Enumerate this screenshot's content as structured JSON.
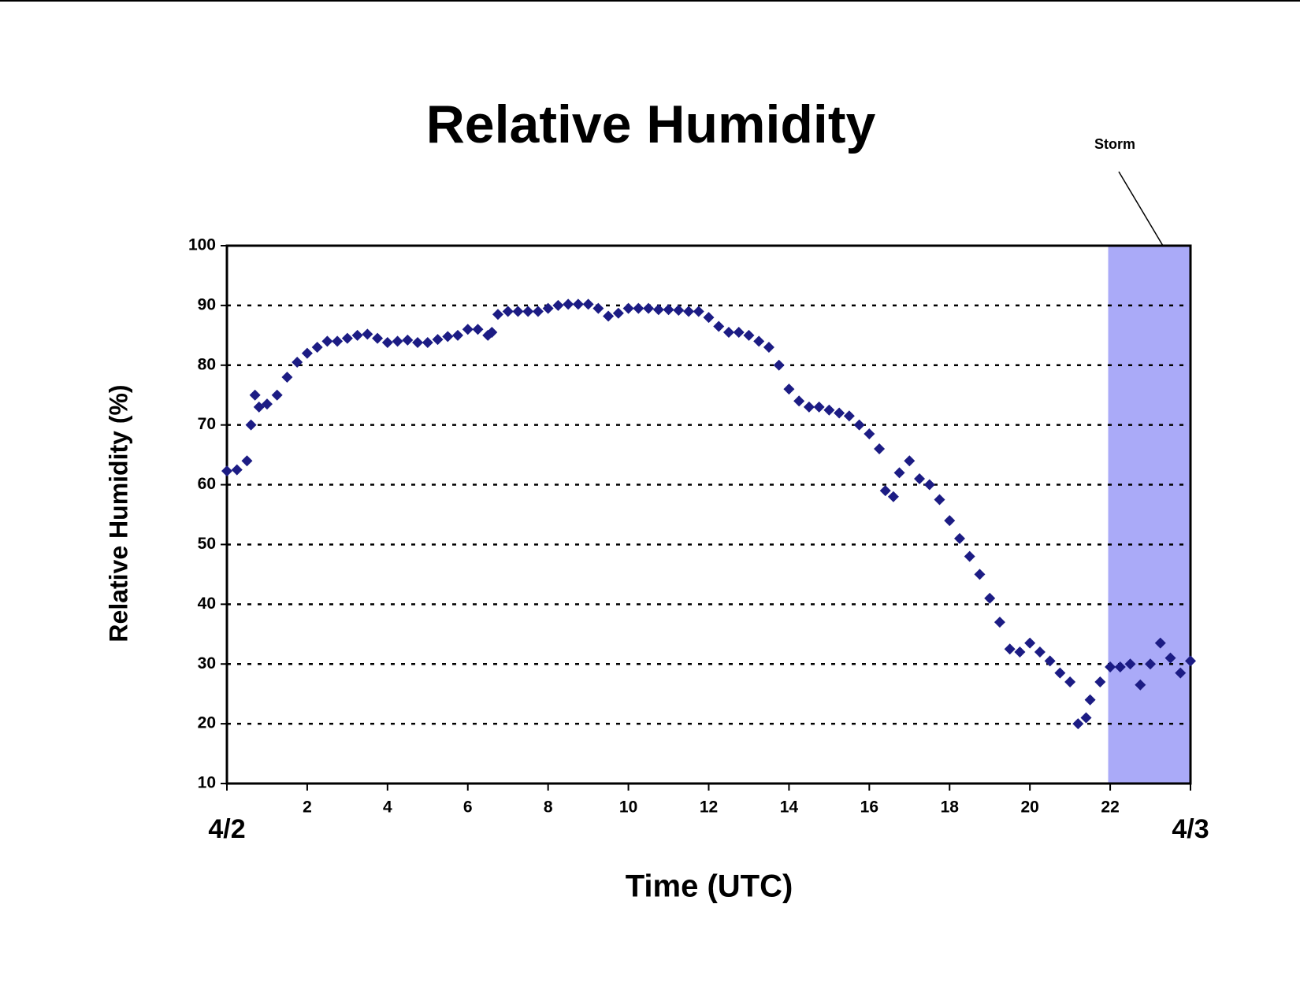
{
  "chart_data": {
    "type": "scatter",
    "title": "Relative Humidity",
    "x_label": "Time (UTC)",
    "y_label": "Relative Humidity (%)",
    "series": [
      {
        "name": "Relative Humidity",
        "color": "#1c1c84",
        "x": [
          0,
          0.25,
          0.5,
          0.6,
          0.7,
          0.8,
          1,
          1.25,
          1.5,
          1.75,
          2,
          2.25,
          2.5,
          2.75,
          3,
          3.25,
          3.5,
          3.75,
          4,
          4.25,
          4.5,
          4.75,
          5,
          5.25,
          5.5,
          5.75,
          6,
          6.25,
          6.5,
          6.6,
          6.75,
          7,
          7.25,
          7.5,
          7.75,
          8,
          8.25,
          8.5,
          8.75,
          9,
          9.25,
          9.5,
          9.75,
          10,
          10.25,
          10.5,
          10.75,
          11,
          11.25,
          11.5,
          11.75,
          12,
          12.25,
          12.5,
          12.75,
          13,
          13.25,
          13.5,
          13.75,
          14,
          14.25,
          14.5,
          14.75,
          15,
          15.25,
          15.5,
          15.75,
          16,
          16.25,
          16.4,
          16.6,
          16.75,
          17,
          17.25,
          17.5,
          17.75,
          18,
          18.25,
          18.5,
          18.75,
          19,
          19.25,
          19.5,
          19.75,
          20,
          20.25,
          20.5,
          20.75,
          21,
          21.2,
          21.4,
          21.5,
          21.75,
          22,
          22.25,
          22.5,
          22.75,
          23,
          23.25,
          23.5,
          23.75,
          24
        ],
        "values": [
          62.3,
          62.5,
          64,
          70,
          75,
          73,
          73.5,
          75,
          78,
          80.5,
          82,
          83,
          84,
          84,
          84.5,
          85,
          85.2,
          84.5,
          83.8,
          84,
          84.2,
          83.8,
          83.8,
          84.3,
          84.8,
          85,
          86,
          86,
          85,
          85.5,
          88.5,
          89,
          89,
          89,
          89,
          89.5,
          90,
          90.2,
          90.2,
          90.2,
          89.5,
          88.2,
          88.7,
          89.5,
          89.5,
          89.5,
          89.3,
          89.3,
          89.2,
          89,
          89,
          88,
          86.5,
          85.5,
          85.5,
          85,
          84,
          83,
          80,
          76,
          74,
          73,
          73,
          72.5,
          72,
          71.5,
          70,
          68.5,
          66,
          59,
          58,
          62,
          64,
          61,
          60,
          57.5,
          54,
          51,
          48,
          45,
          41,
          37,
          32.5,
          32,
          33.5,
          32,
          30.5,
          28.5,
          27,
          20,
          21,
          24,
          27,
          29.5,
          29.5,
          30,
          26.5,
          30,
          33.5,
          31,
          28.5,
          30.5
        ]
      }
    ],
    "xlim": [
      0,
      24
    ],
    "xticks": [
      {
        "value": 0,
        "label": "4/2"
      },
      2,
      4,
      6,
      8,
      10,
      12,
      14,
      16,
      18,
      20,
      22,
      {
        "value": 24,
        "label": "4/3"
      }
    ],
    "ylim": [
      10,
      100
    ],
    "yticks": [
      10,
      20,
      30,
      40,
      50,
      60,
      70,
      80,
      90,
      100
    ],
    "grid": true,
    "annotations": [
      {
        "text": "Storm",
        "x_start": 21.95,
        "x_end": 24,
        "color": "#aaaaf8"
      }
    ]
  }
}
